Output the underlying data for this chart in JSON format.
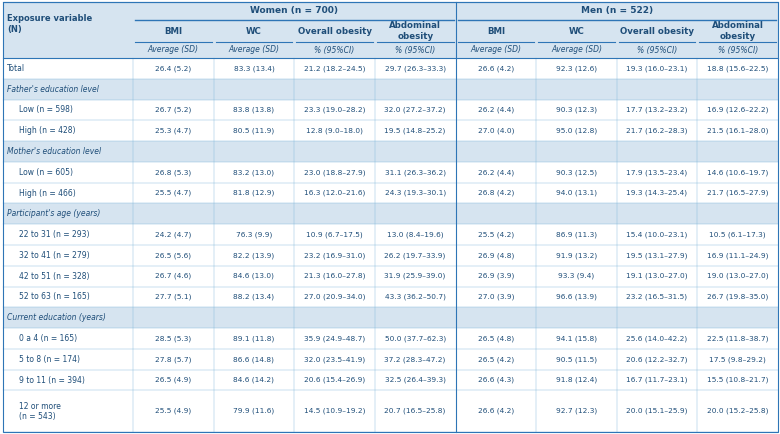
{
  "women_group": "Women (n = 700)",
  "men_group": "Men (n = 522)",
  "col_labels": [
    "BMI",
    "WC",
    "Overall obesity",
    "Abdominal\nobesity",
    "BMI",
    "WC",
    "Overall obesity",
    "Abdominal\nobesity"
  ],
  "col_subheaders": [
    "Average (SD)",
    "Average (SD)",
    "% (95%CI)",
    "% (95%CI)",
    "Average (SD)",
    "Average (SD)",
    "% (95%CI)",
    "% (95%CI)"
  ],
  "row_labels": [
    "Total",
    "Father's education level",
    "  Low (n = 598)",
    "  High (n = 428)",
    "Mother's education level",
    "  Low (n = 605)",
    "  High (n = 466)",
    "Participant's age (years)",
    "  22 to 31 (n = 293)",
    "  32 to 41 (n = 279)",
    "  42 to 51 (n = 328)",
    "  52 to 63 (n = 165)",
    "Current education (years)",
    "  0 a 4 (n = 165)",
    "  5 to 8 (n = 174)",
    "  9 to 11 (n = 394)",
    "  12 or more\n(n = 543)"
  ],
  "is_section_header": [
    false,
    true,
    false,
    false,
    true,
    false,
    false,
    true,
    false,
    false,
    false,
    false,
    true,
    false,
    false,
    false,
    false
  ],
  "data": [
    [
      "26.4 (5.2)",
      "83.3 (13.4)",
      "21.2 (18.2–24.5)",
      "29.7 (26.3–33.3)",
      "26.6 (4.2)",
      "92.3 (12.6)",
      "19.3 (16.0–23.1)",
      "18.8 (15.6–22.5)"
    ],
    [
      "",
      "",
      "",
      "",
      "",
      "",
      "",
      ""
    ],
    [
      "26.7 (5.2)",
      "83.8 (13.8)",
      "23.3 (19.0–28.2)",
      "32.0 (27.2–37.2)",
      "26.2 (4.4)",
      "90.3 (12.3)",
      "17.7 (13.2–23.2)",
      "16.9 (12.6–22.2)"
    ],
    [
      "25.3 (4.7)",
      "80.5 (11.9)",
      "12.8 (9.0–18.0)",
      "19.5 (14.8–25.2)",
      "27.0 (4.0)",
      "95.0 (12.8)",
      "21.7 (16.2–28.3)",
      "21.5 (16.1–28.0)"
    ],
    [
      "",
      "",
      "",
      "",
      "",
      "",
      "",
      ""
    ],
    [
      "26.8 (5.3)",
      "83.2 (13.0)",
      "23.0 (18.8–27.9)",
      "31.1 (26.3–36.2)",
      "26.2 (4.4)",
      "90.3 (12.5)",
      "17.9 (13.5–23.4)",
      "14.6 (10.6–19.7)"
    ],
    [
      "25.5 (4.7)",
      "81.8 (12.9)",
      "16.3 (12.0–21.6)",
      "24.3 (19.3–30.1)",
      "26.8 (4.2)",
      "94.0 (13.1)",
      "19.3 (14.3–25.4)",
      "21.7 (16.5–27.9)"
    ],
    [
      "",
      "",
      "",
      "",
      "",
      "",
      "",
      ""
    ],
    [
      "24.2 (4.7)",
      "76.3 (9.9)",
      "10.9 (6.7–17.5)",
      "13.0 (8.4–19.6)",
      "25.5 (4.2)",
      "86.9 (11.3)",
      "15.4 (10.0–23.1)",
      "10.5 (6.1–17.3)"
    ],
    [
      "26.5 (5.6)",
      "82.2 (13.9)",
      "23.2 (16.9–31.0)",
      "26.2 (19.7–33.9)",
      "26.9 (4.8)",
      "91.9 (13.2)",
      "19.5 (13.1–27.9)",
      "16.9 (11.1–24.9)"
    ],
    [
      "26.7 (4.6)",
      "84.6 (13.0)",
      "21.3 (16.0–27.8)",
      "31.9 (25.9–39.0)",
      "26.9 (3.9)",
      "93.3 (9.4)",
      "19.1 (13.0–27.0)",
      "19.0 (13.0–27.0)"
    ],
    [
      "27.7 (5.1)",
      "88.2 (13.4)",
      "27.0 (20.9–34.0)",
      "43.3 (36.2–50.7)",
      "27.0 (3.9)",
      "96.6 (13.9)",
      "23.2 (16.5–31.5)",
      "26.7 (19.8–35.0)"
    ],
    [
      "",
      "",
      "",
      "",
      "",
      "",
      "",
      ""
    ],
    [
      "28.5 (5.3)",
      "89.1 (11.8)",
      "35.9 (24.9–48.7)",
      "50.0 (37.7–62.3)",
      "26.5 (4.8)",
      "94.1 (15.8)",
      "25.6 (14.0–42.2)",
      "22.5 (11.8–38.7)"
    ],
    [
      "27.8 (5.7)",
      "86.6 (14.8)",
      "32.0 (23.5–41.9)",
      "37.2 (28.3–47.2)",
      "26.5 (4.2)",
      "90.5 (11.5)",
      "20.6 (12.2–32.7)",
      "17.5 (9.8–29.2)"
    ],
    [
      "26.5 (4.9)",
      "84.6 (14.2)",
      "20.6 (15.4–26.9)",
      "32.5 (26.4–39.3)",
      "26.6 (4.3)",
      "91.8 (12.4)",
      "16.7 (11.7–23.1)",
      "15.5 (10.8–21.7)"
    ],
    [
      "25.5 (4.9)",
      "79.9 (11.6)",
      "14.5 (10.9–19.2)",
      "20.7 (16.5–25.8)",
      "26.6 (4.2)",
      "92.7 (12.3)",
      "20.0 (15.1–25.9)",
      "20.0 (15.2–25.8)"
    ]
  ],
  "bg_table": "#D6E4F0",
  "bg_header_top": "#D6E4F0",
  "bg_col_header": "#D6E4F0",
  "bg_white": "#FFFFFF",
  "text_blue_dark": "#1F4E79",
  "text_blue_mid": "#2E75B6",
  "line_color": "#7EB6D9",
  "figsize": [
    7.8,
    4.34
  ],
  "dpi": 100
}
